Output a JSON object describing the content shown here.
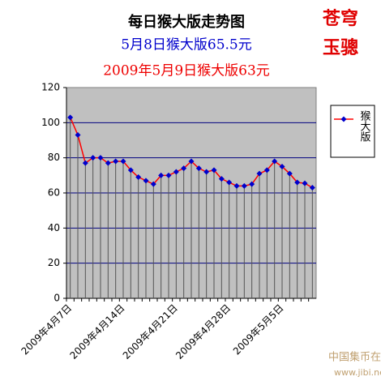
{
  "chart_data": {
    "type": "line",
    "title": "每日猴大版走势图",
    "subtitle": "5月8日猴大版65.5元",
    "subtitle2": "2009年5月9日猴大版63元",
    "categories": [
      "2009年4月7日",
      null,
      null,
      null,
      null,
      null,
      null,
      "2009年4月14日",
      null,
      null,
      null,
      null,
      null,
      null,
      "2009年4月21日",
      null,
      null,
      null,
      null,
      null,
      null,
      "2009年4月28日",
      null,
      null,
      null,
      null,
      null,
      null,
      "2009年5月5日",
      null,
      null,
      null,
      null
    ],
    "series": [
      {
        "name": "猴大版",
        "color": "#ff0000",
        "marker_color": "#0000cc",
        "values": [
          103,
          93,
          77,
          80,
          80,
          77,
          78,
          78,
          73,
          69,
          67,
          65,
          70,
          70,
          72,
          74,
          78,
          74,
          72,
          73,
          68,
          66,
          64,
          64,
          65,
          71,
          73,
          78,
          75,
          71,
          66,
          65.5,
          63
        ]
      }
    ],
    "ylim": [
      0,
      120
    ],
    "yticks": [
      0,
      20,
      40,
      60,
      80,
      100,
      120
    ],
    "grid": true,
    "legend": "right"
  },
  "logo": [
    "苍穹",
    "玉骢"
  ],
  "watermark": {
    "name": "中国集币在线",
    "url": "www.jibi.net"
  }
}
